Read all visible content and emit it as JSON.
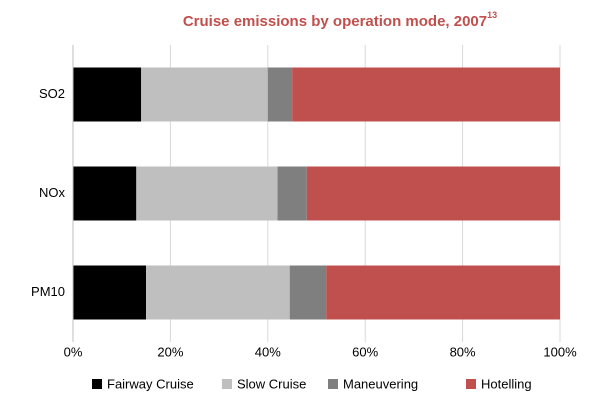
{
  "chart_data": {
    "type": "stacked-barh",
    "title": "Cruise emissions by operation mode, 2007",
    "title_superscript": "13",
    "categories": [
      "SO2",
      "NOx",
      "PM10"
    ],
    "series": [
      {
        "name": "Fairway Cruise",
        "color": "#000000",
        "values": [
          14,
          13,
          15
        ]
      },
      {
        "name": "Slow Cruise",
        "color": "#bfbfbf",
        "values": [
          26,
          29,
          29.5
        ]
      },
      {
        "name": "Maneuvering",
        "color": "#7f7f7f",
        "values": [
          5,
          6,
          7.5
        ]
      },
      {
        "name": "Hotelling",
        "color": "#c0504d",
        "values": [
          55,
          52,
          48
        ]
      }
    ],
    "xlim": [
      0,
      100
    ],
    "xticks": [
      {
        "value": 0,
        "label": "0%"
      },
      {
        "value": 20,
        "label": "20%"
      },
      {
        "value": 40,
        "label": "40%"
      },
      {
        "value": 60,
        "label": "60%"
      },
      {
        "value": 80,
        "label": "80%"
      },
      {
        "value": 100,
        "label": "100%"
      }
    ],
    "grid": true,
    "legend": "bottom"
  }
}
